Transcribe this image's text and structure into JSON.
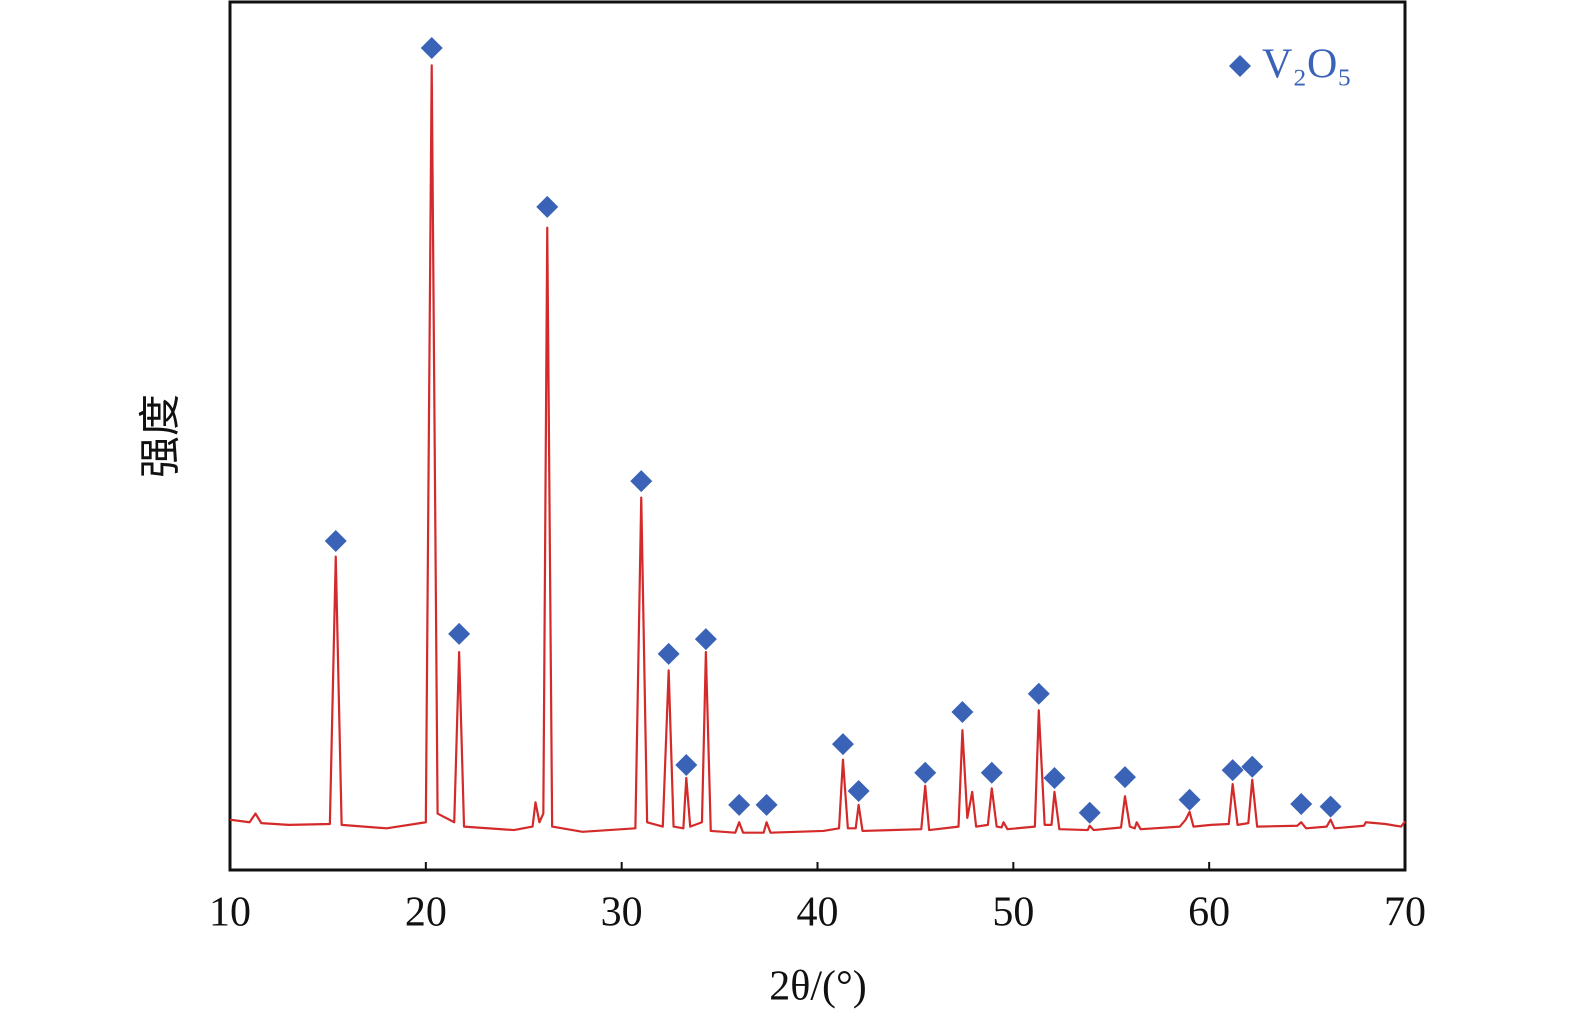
{
  "chart_data": {
    "type": "line",
    "x_label": "2θ/(°)",
    "y_label": "强度",
    "xlim": [
      10,
      70
    ],
    "xticks": [
      10,
      20,
      30,
      40,
      50,
      60,
      70
    ],
    "ylim": [
      0,
      100
    ],
    "legend": "upper right",
    "series": [
      {
        "type": "line",
        "color": "#d42a2a",
        "x": [
          10,
          11.0,
          11.3,
          11.6,
          13,
          15.1,
          15.4,
          15.7,
          18,
          20.0,
          20.3,
          20.6,
          21.45,
          21.7,
          21.95,
          24.5,
          25.45,
          25.6,
          25.8,
          26.0,
          26.2,
          26.45,
          28,
          30.7,
          31.0,
          31.3,
          32.1,
          32.4,
          32.65,
          33.15,
          33.3,
          33.5,
          34.1,
          34.3,
          34.55,
          35.8,
          36.0,
          36.2,
          37.25,
          37.4,
          37.6,
          40.3,
          41.1,
          41.3,
          41.55,
          41.95,
          42.1,
          42.3,
          45.3,
          45.5,
          45.7,
          47.2,
          47.4,
          47.65,
          47.9,
          48.1,
          48.7,
          48.9,
          49.15,
          49.4,
          49.5,
          49.7,
          51.1,
          51.3,
          51.6,
          51.95,
          52.1,
          52.35,
          53.8,
          53.9,
          54.1,
          55.5,
          55.7,
          55.95,
          56.2,
          56.3,
          56.5,
          58.5,
          58.8,
          59.0,
          59.2,
          60.1,
          61.0,
          61.2,
          61.45,
          62.0,
          62.2,
          62.45,
          64.5,
          64.7,
          64.95,
          66.0,
          66.2,
          66.4,
          67.9,
          68.0,
          69.0,
          69.8,
          70
        ],
        "values": [
          5.8,
          5.5,
          6.5,
          5.4,
          5.2,
          5.3,
          36.1,
          5.2,
          4.8,
          5.5,
          92.7,
          6.5,
          5.5,
          25.1,
          5.0,
          4.6,
          5.0,
          7.8,
          5.5,
          6.5,
          74.0,
          5.0,
          4.4,
          4.8,
          42.9,
          5.5,
          5.0,
          23.0,
          5.0,
          4.8,
          10.6,
          5.0,
          5.5,
          25.1,
          4.5,
          4.3,
          5.5,
          4.3,
          4.3,
          5.5,
          4.3,
          4.5,
          4.8,
          12.7,
          4.8,
          4.8,
          7.5,
          4.5,
          4.7,
          9.7,
          4.6,
          5.0,
          16.1,
          6.0,
          9.0,
          5.0,
          5.2,
          9.4,
          5.0,
          4.9,
          5.5,
          4.7,
          5.0,
          18.4,
          5.2,
          5.2,
          9.0,
          4.7,
          4.6,
          5.1,
          4.6,
          4.9,
          8.5,
          5.0,
          4.8,
          5.5,
          4.7,
          5.0,
          5.8,
          6.7,
          5.0,
          5.2,
          5.3,
          9.9,
          5.2,
          5.4,
          10.4,
          5.0,
          5.1,
          5.5,
          4.8,
          5.0,
          5.8,
          4.8,
          5.1,
          5.5,
          5.3,
          5.0,
          5.6
        ]
      },
      {
        "type": "scatter",
        "name": "V₂O₅",
        "color": "#3a63b8",
        "x": [
          15.4,
          20.3,
          21.7,
          26.2,
          31.0,
          32.4,
          33.3,
          34.3,
          36.0,
          37.4,
          41.3,
          42.1,
          45.5,
          47.4,
          48.9,
          51.3,
          52.1,
          53.9,
          55.7,
          59.0,
          61.2,
          62.2,
          64.7,
          66.2
        ],
        "values": [
          37.9,
          94.7,
          27.2,
          76.4,
          44.8,
          24.9,
          12.1,
          26.6,
          7.5,
          7.5,
          14.5,
          9.1,
          11.2,
          18.2,
          11.2,
          20.3,
          10.6,
          6.6,
          10.7,
          8.1,
          11.5,
          11.9,
          7.6,
          7.3
        ]
      }
    ]
  }
}
